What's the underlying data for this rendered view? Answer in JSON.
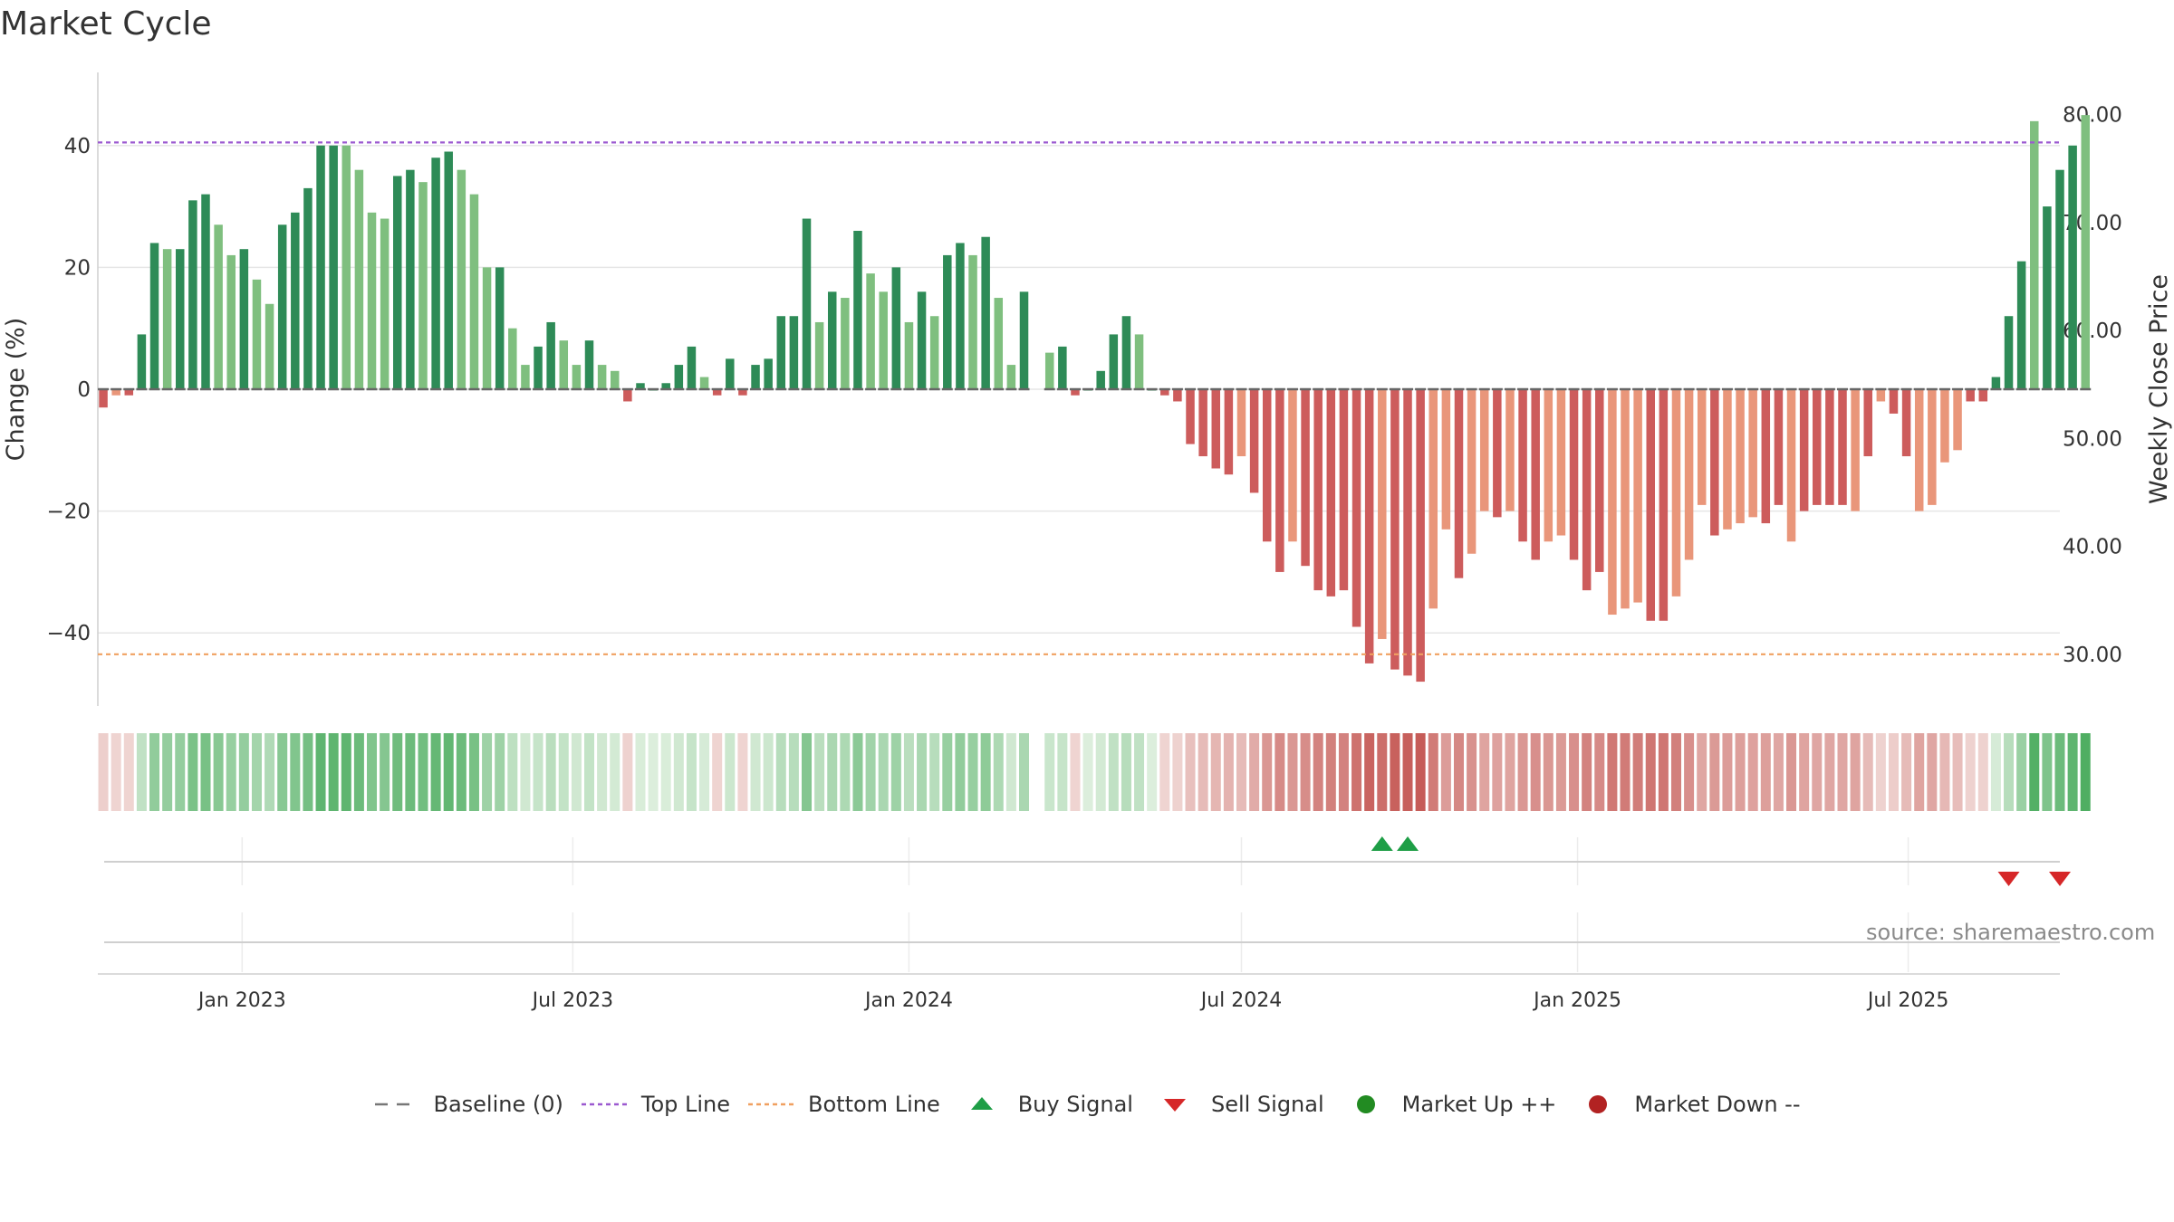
{
  "title": "Market Cycle",
  "source": "source: sharemaestro.com",
  "colors": {
    "up_dark": "#2e8b57",
    "up_light": "#7fbf7f",
    "down_dark": "#cd5c5c",
    "down_light": "#e9967a",
    "top_line": "#9b59d0",
    "bottom_line": "#f0a060",
    "baseline": "#777777",
    "buy": "#1e9e46",
    "sell": "#d62728",
    "market_up": "#228b22",
    "market_down": "#b22222"
  },
  "chart_data": {
    "type": "bar",
    "title": "Market Cycle",
    "xlabel": "",
    "ylabel": "Change (%)",
    "ylabel_right": "Weekly Close Price",
    "ylim": [
      -52,
      52
    ],
    "y_ticks": [
      40,
      20,
      0,
      -20,
      -40
    ],
    "y_tick_labels": [
      "40",
      "20",
      "0",
      "−20",
      "−40"
    ],
    "right_ylim": [
      25.2,
      83.9
    ],
    "right_y_ticks": [
      80,
      70,
      60,
      50,
      40,
      30
    ],
    "right_y_tick_labels": [
      "80.00",
      "70.00",
      "60.00",
      "50.00",
      "40.00",
      "30.00"
    ],
    "x_range": [
      "2022-10-14",
      "2025-09-22"
    ],
    "x_ticks": [
      "2023-01-01",
      "2023-07-01",
      "2024-01-01",
      "2024-07-01",
      "2025-01-01",
      "2025-07-01"
    ],
    "x_tick_labels": [
      "Jan 2023",
      "Jul 2023",
      "Jan 2024",
      "Jul 2024",
      "Jan 2025",
      "Jul 2025"
    ],
    "top_line": 40.5,
    "bottom_line": -43.5,
    "start_week": "2022-10-17",
    "series": [
      {
        "values": [
          -3,
          -1,
          -1,
          9,
          24,
          23,
          23,
          31,
          32,
          27,
          22,
          23,
          18,
          14,
          27,
          29,
          33,
          40,
          40,
          40,
          36,
          29,
          28,
          35,
          36,
          34,
          38,
          39,
          36,
          32,
          20,
          20,
          10,
          4,
          7,
          11,
          8,
          4,
          8,
          4,
          3,
          -2,
          1,
          0,
          1,
          4,
          7,
          2,
          -1,
          5,
          -1,
          4,
          5,
          12,
          12,
          28,
          11,
          16,
          15,
          26,
          19,
          16,
          20,
          11,
          16,
          12,
          22,
          24,
          22,
          25,
          15,
          4,
          16,
          null,
          6,
          7,
          -1,
          0,
          3,
          9,
          12,
          9,
          0,
          -1,
          -2,
          -9,
          -11,
          -13,
          -14,
          -11,
          -17,
          -25,
          -30,
          -25,
          -29,
          -33,
          -34,
          -33,
          -39,
          -45,
          -41,
          -46,
          -47,
          -48,
          -36,
          -23,
          -31,
          -27,
          -20,
          -21,
          -20,
          -25,
          -28,
          -25,
          -24,
          -28,
          -33,
          -30,
          -37,
          -36,
          -35,
          -38,
          -38,
          -34,
          -28,
          -19,
          -24,
          -23,
          -22,
          -21,
          -22,
          -19,
          -25,
          -20,
          -19,
          -19,
          -19,
          -20,
          -11,
          -2,
          -4,
          -11,
          -20,
          -19,
          -12,
          -10,
          -2,
          -2,
          2,
          12,
          21,
          44,
          30,
          36,
          40,
          45
        ],
        "shade": [
          "dark",
          "light",
          "dark",
          "dark",
          "dark",
          "light",
          "dark",
          "dark",
          "dark",
          "light",
          "light",
          "dark",
          "light",
          "light",
          "dark",
          "dark",
          "dark",
          "dark",
          "dark",
          "light",
          "light",
          "light",
          "light",
          "dark",
          "dark",
          "light",
          "dark",
          "dark",
          "light",
          "light",
          "light",
          "dark",
          "light",
          "light",
          "dark",
          "dark",
          "light",
          "light",
          "dark",
          "light",
          "light",
          "dark",
          "dark",
          "dark",
          "dark",
          "dark",
          "dark",
          "light",
          "dark",
          "dark",
          "dark",
          "dark",
          "dark",
          "dark",
          "dark",
          "dark",
          "light",
          "dark",
          "light",
          "dark",
          "light",
          "light",
          "dark",
          "light",
          "dark",
          "light",
          "dark",
          "dark",
          "light",
          "dark",
          "light",
          "light",
          "dark",
          "dark",
          "light",
          "dark",
          "dark",
          "dark",
          "dark",
          "dark",
          "dark",
          "light",
          "dark",
          "dark",
          "dark",
          "dark",
          "dark",
          "dark",
          "dark",
          "light",
          "dark",
          "dark",
          "dark",
          "light",
          "dark",
          "dark",
          "dark",
          "dark",
          "dark",
          "dark",
          "light",
          "dark",
          "dark",
          "dark",
          "light",
          "light",
          "dark",
          "light",
          "light",
          "dark",
          "light",
          "dark",
          "dark",
          "light",
          "light",
          "dark",
          "dark",
          "dark",
          "light",
          "light",
          "light",
          "dark",
          "dark",
          "light",
          "light",
          "light",
          "dark",
          "light",
          "light",
          "light",
          "dark",
          "dark",
          "light",
          "dark",
          "dark",
          "dark",
          "dark",
          "light",
          "dark",
          "light",
          "dark",
          "dark",
          "light",
          "light",
          "light",
          "light",
          "dark",
          "dark",
          "dark",
          "dark",
          "dark",
          "light",
          "dark",
          "dark",
          "dark"
        ]
      },
      {
        "name": "Baseline (0)",
        "values": [
          0
        ]
      }
    ],
    "buy_signals": [
      "2024-09-16",
      "2024-09-30"
    ],
    "sell_signals": [
      "2025-08-25",
      "2025-09-22"
    ],
    "market_up": [],
    "market_down": [],
    "legend_position": "bottom"
  },
  "legend": [
    {
      "label": "Baseline (0)",
      "kind": "dash",
      "color": "#777777"
    },
    {
      "label": "Top Line",
      "kind": "dot",
      "color": "#9b59d0"
    },
    {
      "label": "Bottom Line",
      "kind": "dot",
      "color": "#f0a060"
    },
    {
      "label": "Buy Signal",
      "kind": "tri-up",
      "color": "#1e9e46"
    },
    {
      "label": "Sell Signal",
      "kind": "tri-down",
      "color": "#d62728"
    },
    {
      "label": "Market Up ++",
      "kind": "circle",
      "color": "#228b22"
    },
    {
      "label": "Market Down --",
      "kind": "circle",
      "color": "#b22222"
    }
  ]
}
